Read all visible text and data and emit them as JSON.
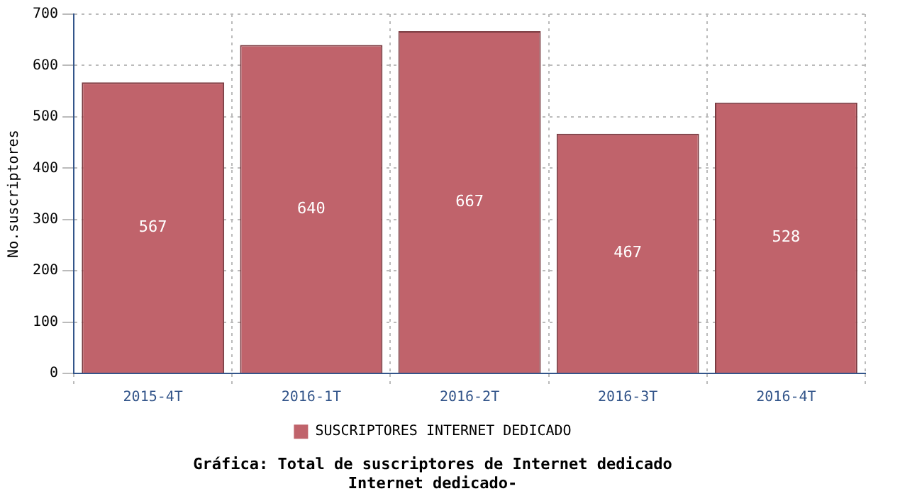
{
  "chart_data": {
    "type": "bar",
    "title": "Gráfica: Total de suscriptores de Internet dedicado",
    "subtitle": "Internet dedicado-",
    "ylabel": "No.suscriptores",
    "categories": [
      "2015-4T",
      "2016-1T",
      "2016-2T",
      "2016-3T",
      "2016-4T"
    ],
    "series": [
      {
        "name": "SUSCRIPTORES INTERNET DEDICADO",
        "color": "#c0636b",
        "values": [
          567,
          640,
          667,
          467,
          528
        ]
      }
    ],
    "ylim": [
      0,
      700
    ],
    "yticks": [
      0,
      100,
      200,
      300,
      400,
      500,
      600,
      700
    ],
    "grid": true,
    "legend": "bottom",
    "data_labels": true
  }
}
